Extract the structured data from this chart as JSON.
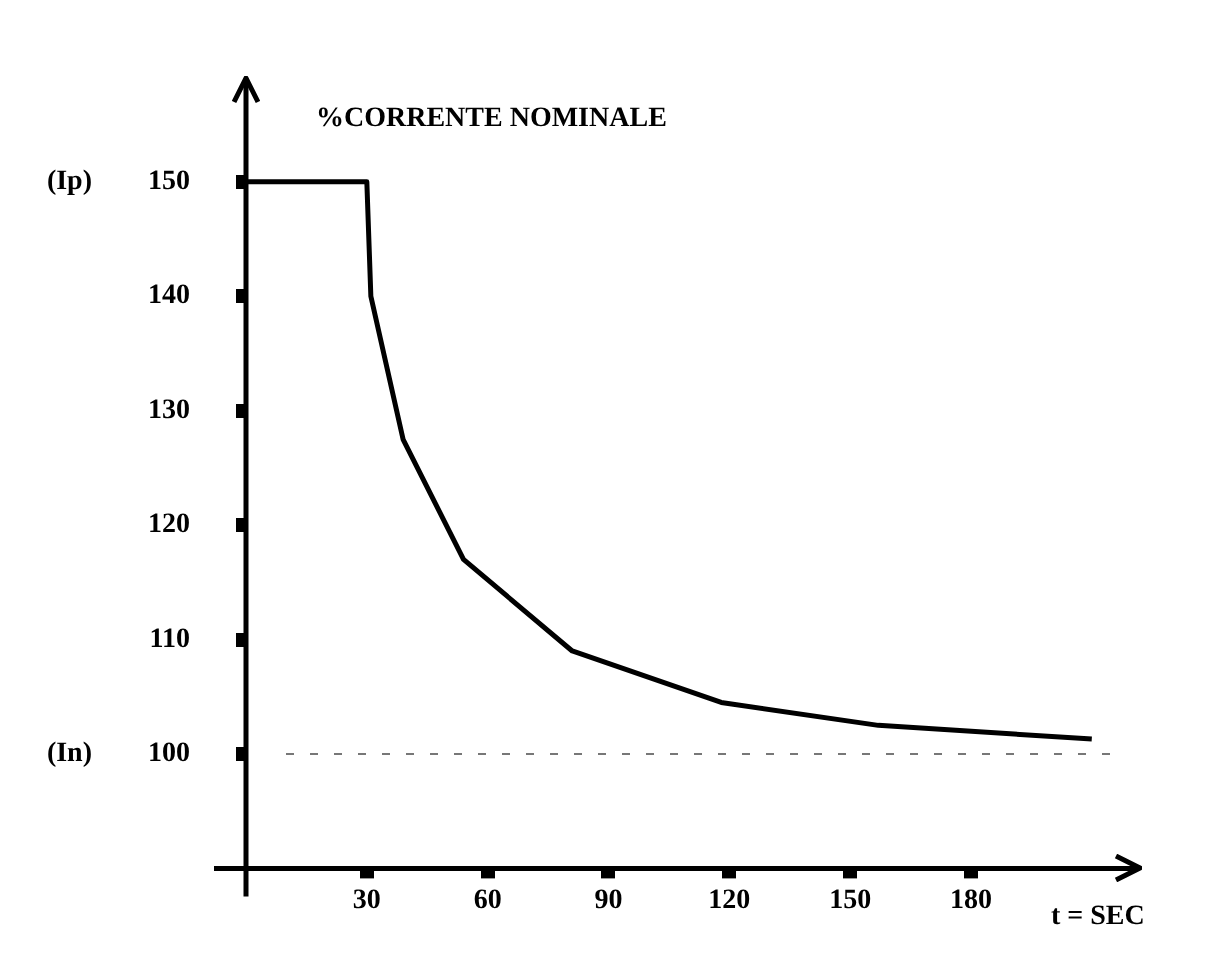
{
  "chart_data": {
    "type": "line",
    "ylabel": "%CORRENTE NOMINALE",
    "xlabel": "t = SEC",
    "x": [
      0,
      30,
      31,
      39,
      54,
      81,
      118,
      157,
      210
    ],
    "series": [
      {
        "color": "#000000",
        "values": [
          150,
          150,
          140,
          127.5,
          117,
          109,
          104.5,
          102.5,
          101.3
        ]
      }
    ],
    "xlim": [
      0,
      218
    ],
    "xticks": [
      30,
      60,
      90,
      120,
      150,
      180
    ],
    "ylim": [
      90,
      159
    ],
    "yticks": [
      {
        "value": 100,
        "label": "(In)        100"
      },
      110,
      120,
      130,
      140,
      {
        "value": 150,
        "label": "(Ip)        150"
      }
    ],
    "ref_lines": [
      {
        "axis": "y",
        "value": 100,
        "color": "#777777",
        "line_style": "dashed"
      }
    ],
    "grid": false,
    "legend": false,
    "marker": "none",
    "line_style": "solid"
  }
}
